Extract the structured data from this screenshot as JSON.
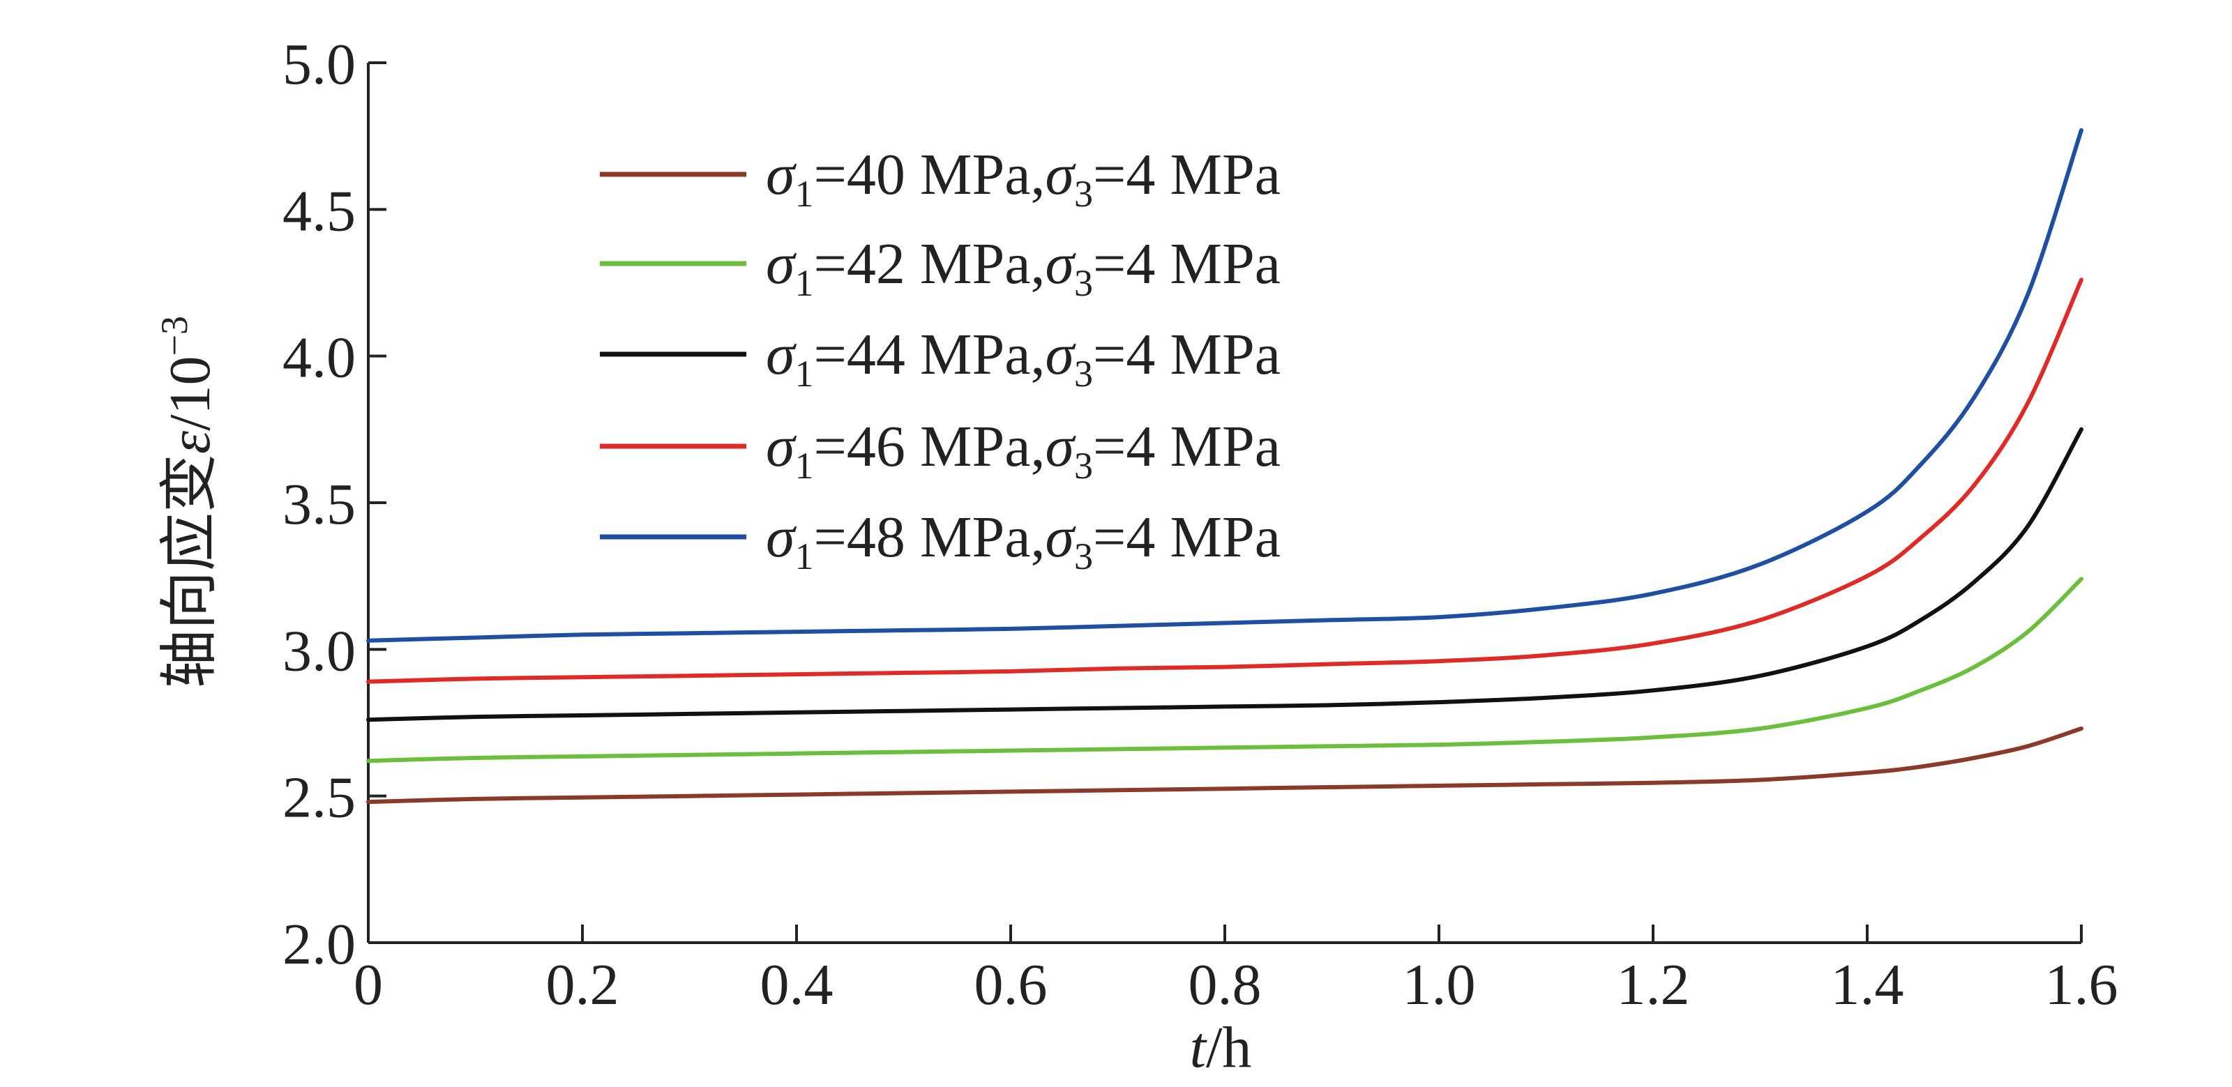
{
  "chart_data": {
    "type": "line",
    "xlabel_italic": "t",
    "xlabel_rest": "/h",
    "ylabel_cjk": "轴向应变",
    "ylabel_symbol": "ε",
    "ylabel_unit": "/10",
    "ylabel_exp": "−3",
    "xlim": [
      0,
      1.6
    ],
    "ylim": [
      2.0,
      5.0
    ],
    "xticks": [
      "0",
      "0.2",
      "0.4",
      "0.6",
      "0.8",
      "1.0",
      "1.2",
      "1.4",
      "1.6"
    ],
    "yticks": [
      "2.0",
      "2.5",
      "3.0",
      "3.5",
      "4.0",
      "4.5",
      "5.0"
    ],
    "legend_position": "top-left",
    "x": [
      0,
      0.1,
      0.2,
      0.3,
      0.4,
      0.5,
      0.6,
      0.7,
      0.8,
      0.9,
      1.0,
      1.1,
      1.2,
      1.3,
      1.4,
      1.45,
      1.5,
      1.55,
      1.6
    ],
    "series": [
      {
        "sigma1": "40",
        "sigma3": "4",
        "unit": "MPa",
        "color": "#8b3a2a",
        "values": [
          2.48,
          2.49,
          2.495,
          2.5,
          2.505,
          2.51,
          2.515,
          2.52,
          2.525,
          2.53,
          2.535,
          2.54,
          2.545,
          2.555,
          2.58,
          2.6,
          2.63,
          2.67,
          2.73
        ]
      },
      {
        "sigma1": "42",
        "sigma3": "4",
        "unit": "MPa",
        "color": "#6cbf3c",
        "values": [
          2.62,
          2.63,
          2.635,
          2.64,
          2.645,
          2.65,
          2.655,
          2.66,
          2.665,
          2.67,
          2.675,
          2.685,
          2.7,
          2.73,
          2.8,
          2.86,
          2.94,
          3.06,
          3.24
        ]
      },
      {
        "sigma1": "44",
        "sigma3": "4",
        "unit": "MPa",
        "color": "#111111",
        "values": [
          2.76,
          2.77,
          2.775,
          2.78,
          2.785,
          2.79,
          2.795,
          2.8,
          2.805,
          2.81,
          2.82,
          2.835,
          2.86,
          2.91,
          3.01,
          3.1,
          3.23,
          3.42,
          3.75
        ]
      },
      {
        "sigma1": "46",
        "sigma3": "4",
        "unit": "MPa",
        "color": "#e02a26",
        "values": [
          2.89,
          2.9,
          2.905,
          2.91,
          2.915,
          2.92,
          2.925,
          2.935,
          2.94,
          2.95,
          2.96,
          2.98,
          3.02,
          3.1,
          3.25,
          3.38,
          3.56,
          3.84,
          4.26
        ]
      },
      {
        "sigma1": "48",
        "sigma3": "4",
        "unit": "MPa",
        "color": "#1f4fa3",
        "values": [
          3.03,
          3.04,
          3.05,
          3.055,
          3.06,
          3.065,
          3.07,
          3.08,
          3.09,
          3.1,
          3.11,
          3.14,
          3.19,
          3.29,
          3.47,
          3.63,
          3.86,
          4.21,
          4.77
        ]
      }
    ]
  }
}
